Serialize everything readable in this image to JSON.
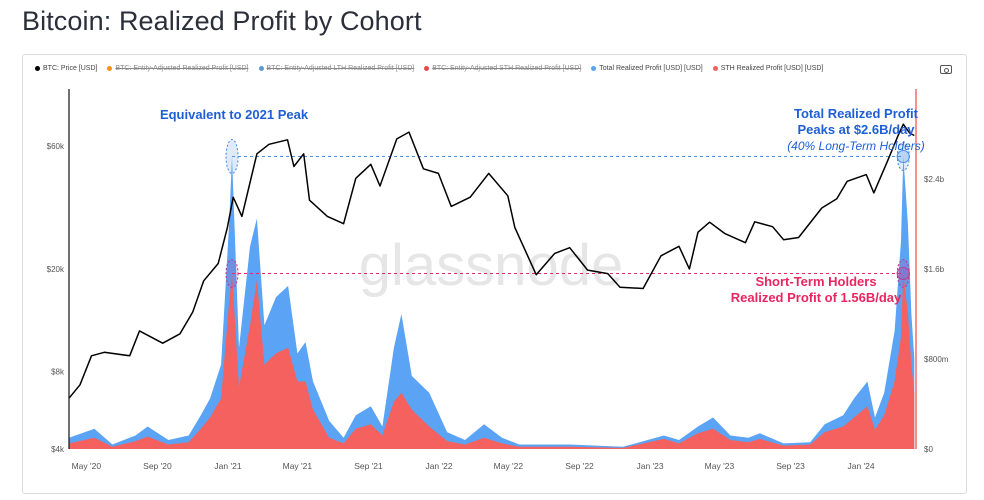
{
  "page": {
    "title": "Bitcoin: Realized Profit by Cohort"
  },
  "legend": [
    {
      "label": "BTC: Price [USD]",
      "color": "#000000",
      "active": true
    },
    {
      "label": "BTC: Entity-Adjusted Realized Profit [USD]",
      "color": "#f7931a",
      "active": false
    },
    {
      "label": "BTC: Entity-Adjusted LTH Realized Profit [USD]",
      "color": "#5b9bd5",
      "active": false
    },
    {
      "label": "BTC: Entity-Adjusted STH Realized Profit [USD]",
      "color": "#e8474c",
      "active": false
    },
    {
      "label": "Total Realized Profit [USD] [USD]",
      "color": "#5ba3f5",
      "active": true
    },
    {
      "label": "STH Realized Profit [USD] [USD]",
      "color": "#f4615f",
      "active": true
    }
  ],
  "watermark": "glassnode",
  "chart_data": {
    "type": "area",
    "title": "Bitcoin: Realized Profit by Cohort",
    "x_tick_labels": [
      "May '20",
      "Sep '20",
      "Jan '21",
      "May '21",
      "Sep '21",
      "Jan '22",
      "May '22",
      "Sep '22",
      "Jan '23",
      "May '23",
      "Sep '23",
      "Jan '24"
    ],
    "left_axis": {
      "scale": "log",
      "tick_labels": [
        "$4k",
        "$8k",
        "$20k",
        "$60k"
      ],
      "ticks": [
        4000,
        8000,
        20000,
        60000
      ],
      "range": [
        4000,
        100000
      ]
    },
    "right_axis": {
      "scale": "linear",
      "tick_labels": [
        "$0",
        "$800m",
        "$1.6b",
        "$2.4b"
      ],
      "ticks": [
        0,
        0.8,
        1.6,
        2.4
      ],
      "unit": "billion USD",
      "range": [
        0,
        3.2
      ]
    },
    "x_range": [
      "2020-04-01",
      "2024-04-05"
    ],
    "series": [
      {
        "name": "BTC: Price [USD]",
        "type": "line",
        "color": "#000000",
        "points": [
          [
            "2020-04-01",
            6300
          ],
          [
            "2020-04-20",
            7100
          ],
          [
            "2020-05-10",
            9200
          ],
          [
            "2020-06-01",
            9500
          ],
          [
            "2020-07-15",
            9200
          ],
          [
            "2020-08-01",
            11500
          ],
          [
            "2020-09-10",
            10300
          ],
          [
            "2020-10-10",
            11200
          ],
          [
            "2020-11-01",
            13600
          ],
          [
            "2020-11-20",
            18000
          ],
          [
            "2020-12-15",
            21000
          ],
          [
            "2020-12-31",
            29000
          ],
          [
            "2021-01-10",
            38000
          ],
          [
            "2021-01-25",
            32000
          ],
          [
            "2021-02-20",
            56000
          ],
          [
            "2021-03-13",
            61000
          ],
          [
            "2021-04-14",
            63500
          ],
          [
            "2021-04-25",
            50000
          ],
          [
            "2021-05-12",
            56000
          ],
          [
            "2021-05-22",
            37000
          ],
          [
            "2021-06-22",
            32000
          ],
          [
            "2021-07-20",
            30000
          ],
          [
            "2021-08-10",
            45000
          ],
          [
            "2021-09-05",
            51000
          ],
          [
            "2021-09-21",
            42000
          ],
          [
            "2021-10-20",
            64000
          ],
          [
            "2021-11-10",
            68000
          ],
          [
            "2021-12-05",
            49000
          ],
          [
            "2021-12-31",
            47000
          ],
          [
            "2022-01-22",
            35000
          ],
          [
            "2022-02-24",
            38000
          ],
          [
            "2022-03-28",
            47000
          ],
          [
            "2022-04-30",
            38500
          ],
          [
            "2022-05-12",
            29000
          ],
          [
            "2022-06-18",
            19000
          ],
          [
            "2022-07-20",
            23000
          ],
          [
            "2022-08-15",
            24200
          ],
          [
            "2022-09-15",
            19800
          ],
          [
            "2022-10-20",
            19200
          ],
          [
            "2022-11-10",
            17000
          ],
          [
            "2022-12-20",
            16800
          ],
          [
            "2023-01-20",
            22500
          ],
          [
            "2023-02-20",
            24500
          ],
          [
            "2023-03-10",
            20000
          ],
          [
            "2023-03-25",
            27800
          ],
          [
            "2023-04-14",
            30400
          ],
          [
            "2023-05-10",
            27500
          ],
          [
            "2023-06-15",
            25300
          ],
          [
            "2023-07-01",
            30500
          ],
          [
            "2023-08-01",
            29200
          ],
          [
            "2023-08-20",
            26000
          ],
          [
            "2023-09-15",
            26500
          ],
          [
            "2023-10-25",
            34500
          ],
          [
            "2023-11-20",
            37500
          ],
          [
            "2023-12-08",
            43800
          ],
          [
            "2024-01-10",
            46500
          ],
          [
            "2024-01-23",
            39500
          ],
          [
            "2024-02-15",
            52000
          ],
          [
            "2024-03-05",
            66000
          ],
          [
            "2024-03-14",
            73000
          ],
          [
            "2024-03-25",
            67500
          ],
          [
            "2024-04-02",
            66000
          ]
        ]
      },
      {
        "name": "Total Realized Profit [USD] [USD]",
        "type": "area",
        "color": "#5ba3f5",
        "points": [
          [
            "2020-04-01",
            0.1
          ],
          [
            "2020-05-15",
            0.18
          ],
          [
            "2020-06-15",
            0.04
          ],
          [
            "2020-07-25",
            0.12
          ],
          [
            "2020-08-15",
            0.2
          ],
          [
            "2020-09-20",
            0.08
          ],
          [
            "2020-10-25",
            0.12
          ],
          [
            "2020-11-15",
            0.3
          ],
          [
            "2020-12-01",
            0.45
          ],
          [
            "2020-12-20",
            0.75
          ],
          [
            "2021-01-03",
            2.0
          ],
          [
            "2021-01-08",
            2.6
          ],
          [
            "2021-01-20",
            0.9
          ],
          [
            "2021-02-08",
            1.8
          ],
          [
            "2021-02-20",
            2.05
          ],
          [
            "2021-03-05",
            1.1
          ],
          [
            "2021-03-25",
            1.35
          ],
          [
            "2021-04-15",
            1.45
          ],
          [
            "2021-05-01",
            0.85
          ],
          [
            "2021-05-15",
            0.95
          ],
          [
            "2021-05-28",
            0.6
          ],
          [
            "2021-06-25",
            0.25
          ],
          [
            "2021-07-20",
            0.1
          ],
          [
            "2021-08-10",
            0.3
          ],
          [
            "2021-09-05",
            0.38
          ],
          [
            "2021-09-25",
            0.2
          ],
          [
            "2021-10-15",
            0.9
          ],
          [
            "2021-10-28",
            1.2
          ],
          [
            "2021-11-15",
            0.65
          ],
          [
            "2021-12-15",
            0.5
          ],
          [
            "2022-01-15",
            0.15
          ],
          [
            "2022-02-15",
            0.08
          ],
          [
            "2022-03-20",
            0.22
          ],
          [
            "2022-04-20",
            0.1
          ],
          [
            "2022-05-20",
            0.04
          ],
          [
            "2022-08-15",
            0.04
          ],
          [
            "2022-11-15",
            0.02
          ],
          [
            "2023-01-25",
            0.12
          ],
          [
            "2023-02-20",
            0.08
          ],
          [
            "2023-03-25",
            0.2
          ],
          [
            "2023-04-20",
            0.28
          ],
          [
            "2023-05-20",
            0.12
          ],
          [
            "2023-06-20",
            0.1
          ],
          [
            "2023-07-10",
            0.14
          ],
          [
            "2023-08-20",
            0.05
          ],
          [
            "2023-10-05",
            0.06
          ],
          [
            "2023-10-30",
            0.22
          ],
          [
            "2023-12-01",
            0.3
          ],
          [
            "2023-12-20",
            0.45
          ],
          [
            "2024-01-12",
            0.6
          ],
          [
            "2024-01-25",
            0.28
          ],
          [
            "2024-02-10",
            0.5
          ],
          [
            "2024-02-28",
            1.05
          ],
          [
            "2024-03-10",
            1.85
          ],
          [
            "2024-03-14",
            2.6
          ],
          [
            "2024-03-22",
            2.0
          ],
          [
            "2024-03-28",
            1.2
          ],
          [
            "2024-04-02",
            0.8
          ]
        ]
      },
      {
        "name": "STH Realized Profit [USD] [USD]",
        "type": "area",
        "color": "#f4615f",
        "points": [
          [
            "2020-04-01",
            0.05
          ],
          [
            "2020-05-15",
            0.1
          ],
          [
            "2020-06-15",
            0.02
          ],
          [
            "2020-07-25",
            0.07
          ],
          [
            "2020-08-15",
            0.11
          ],
          [
            "2020-09-20",
            0.04
          ],
          [
            "2020-10-25",
            0.06
          ],
          [
            "2020-11-15",
            0.18
          ],
          [
            "2020-12-01",
            0.28
          ],
          [
            "2020-12-20",
            0.45
          ],
          [
            "2021-01-03",
            1.3
          ],
          [
            "2021-01-08",
            1.56
          ],
          [
            "2021-01-20",
            0.55
          ],
          [
            "2021-02-08",
            1.1
          ],
          [
            "2021-02-20",
            1.5
          ],
          [
            "2021-03-05",
            0.75
          ],
          [
            "2021-03-25",
            0.85
          ],
          [
            "2021-04-15",
            0.9
          ],
          [
            "2021-05-01",
            0.6
          ],
          [
            "2021-05-15",
            0.6
          ],
          [
            "2021-05-28",
            0.35
          ],
          [
            "2021-06-25",
            0.1
          ],
          [
            "2021-07-20",
            0.05
          ],
          [
            "2021-08-10",
            0.18
          ],
          [
            "2021-09-05",
            0.22
          ],
          [
            "2021-09-25",
            0.12
          ],
          [
            "2021-10-15",
            0.42
          ],
          [
            "2021-10-28",
            0.5
          ],
          [
            "2021-11-15",
            0.35
          ],
          [
            "2021-12-15",
            0.2
          ],
          [
            "2022-01-15",
            0.07
          ],
          [
            "2022-02-15",
            0.04
          ],
          [
            "2022-03-20",
            0.1
          ],
          [
            "2022-04-20",
            0.05
          ],
          [
            "2022-05-20",
            0.02
          ],
          [
            "2022-08-15",
            0.02
          ],
          [
            "2022-11-15",
            0.01
          ],
          [
            "2023-01-25",
            0.09
          ],
          [
            "2023-02-20",
            0.05
          ],
          [
            "2023-03-25",
            0.14
          ],
          [
            "2023-04-20",
            0.18
          ],
          [
            "2023-05-20",
            0.08
          ],
          [
            "2023-06-20",
            0.06
          ],
          [
            "2023-07-10",
            0.09
          ],
          [
            "2023-08-20",
            0.03
          ],
          [
            "2023-10-05",
            0.04
          ],
          [
            "2023-10-30",
            0.15
          ],
          [
            "2023-12-01",
            0.2
          ],
          [
            "2023-12-20",
            0.28
          ],
          [
            "2024-01-12",
            0.38
          ],
          [
            "2024-01-25",
            0.17
          ],
          [
            "2024-02-10",
            0.3
          ],
          [
            "2024-02-28",
            0.6
          ],
          [
            "2024-03-10",
            1.0
          ],
          [
            "2024-03-14",
            1.56
          ],
          [
            "2024-03-22",
            1.2
          ],
          [
            "2024-03-28",
            0.75
          ],
          [
            "2024-04-02",
            0.5
          ]
        ]
      }
    ],
    "annotations": [
      {
        "text": "Equivalent to 2021 Peak",
        "color": "#1f5fd6"
      },
      {
        "lines": [
          "Total Realized Profit",
          "Peaks at $2.6B/day"
        ],
        "color": "#1f5fd6"
      },
      {
        "text": "(40% Long-Term Holders)",
        "color": "#1f5fd6",
        "italic": true
      },
      {
        "lines": [
          "Short-Term Holders",
          "Realized Profit of 1.56B/day"
        ],
        "color": "#e8265f"
      }
    ],
    "reference_lines": [
      {
        "right_value": 2.6,
        "color": "#4d90e6",
        "style": "dashed"
      },
      {
        "right_value": 1.56,
        "color": "#e8265f",
        "style": "dashed"
      }
    ],
    "highlight_markers": [
      {
        "date": "2021-01-08",
        "right_value": 2.6,
        "color": "#4d90e6"
      },
      {
        "date": "2021-01-08",
        "right_value": 1.56,
        "color": "#c23b8e"
      },
      {
        "date": "2024-03-14",
        "right_value": 2.6,
        "color": "#4d90e6"
      },
      {
        "date": "2024-03-14",
        "right_value": 1.56,
        "color": "#c23b8e"
      }
    ],
    "current_marker": {
      "date": "2024-04-05",
      "color": "#f4615f"
    },
    "grid": false
  }
}
